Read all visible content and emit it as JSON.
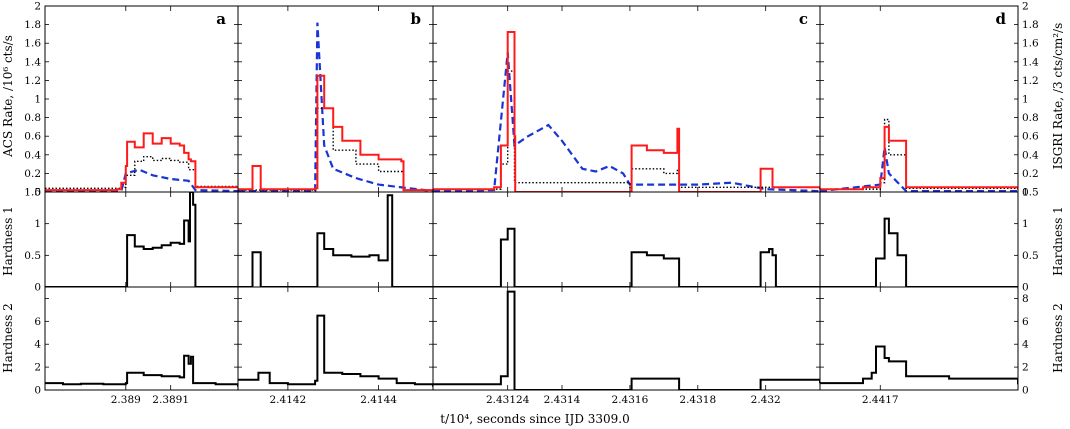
{
  "chart_data": {
    "type": "line",
    "x_axis_label": "t/10⁴, seconds since IJD 3309.0",
    "colors": {
      "acs_rate": "#ff1a1a",
      "isgri_rate": "#1a35d6",
      "component_dotted": "#000000",
      "hardness": "#000000",
      "frame": "#000000",
      "background": "#ffffff"
    },
    "rows": [
      {
        "id": "rate",
        "left_label": "ACS Rate, /10⁶ cts/s",
        "right_label": "ISGRI Rate, /3 cts/cm²/s",
        "ylim": [
          0,
          2
        ],
        "yticks": [
          "0",
          "0.2",
          "0.4",
          "0.6",
          "0.8",
          "1",
          "1.2",
          "1.4",
          "1.6",
          "1.8",
          "2"
        ]
      },
      {
        "id": "hardness1",
        "left_label": "Hardness 1",
        "right_label": "Hardness 1",
        "ylim": [
          0,
          1.5
        ],
        "yticks": [
          "0",
          "0.5",
          "1",
          "1.5"
        ]
      },
      {
        "id": "hardness2",
        "left_label": "Hardness 2",
        "right_label": "Hardness 2",
        "ylim": [
          0,
          9
        ],
        "yticks": [
          "0",
          "2",
          "4",
          "6",
          "8"
        ]
      }
    ],
    "panels": [
      {
        "id": "a",
        "letter": "a",
        "xlim": [
          2.38882,
          2.38925
        ],
        "xticks": [
          {
            "v": 2.389,
            "label": "2.389"
          },
          {
            "v": 2.3891,
            "label": "2.3891"
          }
        ],
        "rate": {
          "acs": [
            [
              2.38882,
              0.02
            ],
            [
              2.38898,
              0.03
            ],
            [
              2.38899,
              0.1
            ],
            [
              2.389,
              0.28
            ],
            [
              2.389003,
              0.54
            ],
            [
              2.38902,
              0.48
            ],
            [
              2.38904,
              0.63
            ],
            [
              2.38906,
              0.52
            ],
            [
              2.38908,
              0.58
            ],
            [
              2.3891,
              0.52
            ],
            [
              2.38912,
              0.5
            ],
            [
              2.38913,
              0.42
            ],
            [
              2.38914,
              0.35
            ],
            [
              2.389145,
              0.33
            ],
            [
              2.389155,
              0.05
            ],
            [
              2.38925,
              0.04
            ]
          ],
          "dotted": [
            [
              2.38882,
              0.04
            ],
            [
              2.38899,
              0.05
            ],
            [
              2.389,
              0.18
            ],
            [
              2.38902,
              0.33
            ],
            [
              2.38904,
              0.38
            ],
            [
              2.38906,
              0.34
            ],
            [
              2.38908,
              0.36
            ],
            [
              2.3891,
              0.34
            ],
            [
              2.38912,
              0.32
            ],
            [
              2.38914,
              0.24
            ],
            [
              2.389155,
              0.06
            ],
            [
              2.38925,
              0.05
            ]
          ],
          "isgri": [
            [
              2.38882,
              0.01
            ],
            [
              2.38899,
              0.01
            ],
            [
              2.389,
              0.2
            ],
            [
              2.38903,
              0.24
            ],
            [
              2.38906,
              0.18
            ],
            [
              2.3891,
              0.14
            ],
            [
              2.38914,
              0.12
            ],
            [
              2.389155,
              0.02
            ],
            [
              2.38925,
              0.01
            ]
          ]
        },
        "hardness1": [
          [
            2.38882,
            0
          ],
          [
            2.389,
            0
          ],
          [
            2.389003,
            0.82
          ],
          [
            2.38902,
            0.64
          ],
          [
            2.38904,
            0.6
          ],
          [
            2.38906,
            0.62
          ],
          [
            2.38908,
            0.66
          ],
          [
            2.3891,
            0.7
          ],
          [
            2.38912,
            0.68
          ],
          [
            2.38913,
            1.05
          ],
          [
            2.38914,
            0.72
          ],
          [
            2.389143,
            1.5
          ],
          [
            2.38915,
            1.3
          ],
          [
            2.389155,
            0
          ],
          [
            2.38925,
            0
          ]
        ],
        "hardness2": [
          [
            2.38882,
            0.6
          ],
          [
            2.38886,
            0.5
          ],
          [
            2.3889,
            0.55
          ],
          [
            2.38895,
            0.5
          ],
          [
            2.389,
            0.6
          ],
          [
            2.389003,
            1.5
          ],
          [
            2.38904,
            1.3
          ],
          [
            2.38908,
            1.2
          ],
          [
            2.38912,
            1.1
          ],
          [
            2.38913,
            3.0
          ],
          [
            2.38914,
            2.3
          ],
          [
            2.389145,
            2.9
          ],
          [
            2.38915,
            0.6
          ],
          [
            2.3892,
            0.5
          ],
          [
            2.38925,
            0.3
          ]
        ]
      },
      {
        "id": "b",
        "letter": "b",
        "xlim": [
          2.41409,
          2.41452
        ],
        "xticks": [
          {
            "v": 2.4142,
            "label": "2.4142"
          },
          {
            "v": 2.4144,
            "label": "2.4144"
          }
        ],
        "rate": {
          "acs": [
            [
              2.41409,
              0.03
            ],
            [
              2.41412,
              0.03
            ],
            [
              2.414122,
              0.28
            ],
            [
              2.41414,
              0.03
            ],
            [
              2.41426,
              0.04
            ],
            [
              2.414265,
              1.25
            ],
            [
              2.41428,
              0.9
            ],
            [
              2.4143,
              0.7
            ],
            [
              2.41432,
              0.55
            ],
            [
              2.41436,
              0.4
            ],
            [
              2.4144,
              0.35
            ],
            [
              2.41445,
              0.33
            ],
            [
              2.414455,
              0.02
            ],
            [
              2.41452,
              0.03
            ]
          ],
          "dotted": [
            [
              2.41409,
              0.02
            ],
            [
              2.41426,
              0.02
            ],
            [
              2.414265,
              0.9
            ],
            [
              2.4143,
              0.45
            ],
            [
              2.41435,
              0.3
            ],
            [
              2.4144,
              0.22
            ],
            [
              2.414455,
              0.02
            ],
            [
              2.41452,
              0.02
            ]
          ],
          "isgri": [
            [
              2.41409,
              0.01
            ],
            [
              2.41426,
              0.01
            ],
            [
              2.414265,
              1.82
            ],
            [
              2.41428,
              0.5
            ],
            [
              2.4143,
              0.25
            ],
            [
              2.41435,
              0.15
            ],
            [
              2.4144,
              0.08
            ],
            [
              2.41452,
              0.01
            ]
          ]
        },
        "hardness1": [
          [
            2.41409,
            0
          ],
          [
            2.41412,
            0
          ],
          [
            2.414122,
            0.55
          ],
          [
            2.41414,
            0
          ],
          [
            2.41426,
            0
          ],
          [
            2.414265,
            0.85
          ],
          [
            2.41428,
            0.6
          ],
          [
            2.4143,
            0.5
          ],
          [
            2.41434,
            0.48
          ],
          [
            2.41438,
            0.5
          ],
          [
            2.4144,
            0.42
          ],
          [
            2.41442,
            1.45
          ],
          [
            2.41443,
            0
          ],
          [
            2.41452,
            0
          ]
        ],
        "hardness2": [
          [
            2.41409,
            0.9
          ],
          [
            2.41413,
            0.9
          ],
          [
            2.414135,
            1.5
          ],
          [
            2.41416,
            0.6
          ],
          [
            2.4142,
            0.5
          ],
          [
            2.41426,
            0.8
          ],
          [
            2.414265,
            6.5
          ],
          [
            2.41428,
            1.5
          ],
          [
            2.41432,
            1.4
          ],
          [
            2.41436,
            1.2
          ],
          [
            2.4144,
            1.0
          ],
          [
            2.41444,
            0.6
          ],
          [
            2.41448,
            0.5
          ],
          [
            2.41452,
            0.3
          ]
        ]
      },
      {
        "id": "c",
        "letter": "c",
        "xlim": [
          2.43102,
          2.43216
        ],
        "xticks": [
          {
            "v": 2.43124,
            "label": "2.43124"
          },
          {
            "v": 2.4314,
            "label": "2.4314"
          },
          {
            "v": 2.4316,
            "label": "2.4316"
          },
          {
            "v": 2.4318,
            "label": "2.4318"
          },
          {
            "v": 2.432,
            "label": "2.432"
          }
        ],
        "rate": {
          "acs": [
            [
              2.43102,
              0.03
            ],
            [
              2.4312,
              0.05
            ],
            [
              2.43122,
              0.5
            ],
            [
              2.43124,
              1.72
            ],
            [
              2.43126,
              0.6
            ],
            [
              2.431262,
              0
            ],
            [
              2.4316,
              0
            ],
            [
              2.431605,
              0.5
            ],
            [
              2.43165,
              0.45
            ],
            [
              2.4317,
              0.42
            ],
            [
              2.43174,
              0.68
            ],
            [
              2.431745,
              0
            ],
            [
              2.43198,
              0
            ],
            [
              2.431985,
              0.25
            ],
            [
              2.43202,
              0.05
            ],
            [
              2.43216,
              0.03
            ]
          ],
          "dotted": [
            [
              2.43102,
              0.03
            ],
            [
              2.43122,
              0.3
            ],
            [
              2.43124,
              1.3
            ],
            [
              2.43126,
              0.1
            ],
            [
              2.4316,
              0.05
            ],
            [
              2.431605,
              0.25
            ],
            [
              2.4317,
              0.2
            ],
            [
              2.43174,
              0.25
            ],
            [
              2.431745,
              0.05
            ],
            [
              2.432,
              0.05
            ],
            [
              2.43216,
              0.03
            ]
          ],
          "isgri": [
            [
              2.43102,
              0.01
            ],
            [
              2.4312,
              0.02
            ],
            [
              2.43124,
              1.5
            ],
            [
              2.43126,
              0.5
            ],
            [
              2.4313,
              0.6
            ],
            [
              2.43136,
              0.72
            ],
            [
              2.4314,
              0.55
            ],
            [
              2.43146,
              0.25
            ],
            [
              2.4315,
              0.22
            ],
            [
              2.43154,
              0.28
            ],
            [
              2.43158,
              0.2
            ],
            [
              2.4316,
              0.08
            ],
            [
              2.4318,
              0.08
            ],
            [
              2.4319,
              0.1
            ],
            [
              2.432,
              0.03
            ],
            [
              2.43216,
              0.01
            ]
          ]
        },
        "hardness1": [
          [
            2.43102,
            0
          ],
          [
            2.4312,
            0
          ],
          [
            2.43122,
            0.75
          ],
          [
            2.43124,
            0.92
          ],
          [
            2.43126,
            0
          ],
          [
            2.4316,
            0
          ],
          [
            2.431605,
            0.55
          ],
          [
            2.43165,
            0.5
          ],
          [
            2.4317,
            0.45
          ],
          [
            2.431745,
            0
          ],
          [
            2.43198,
            0
          ],
          [
            2.431985,
            0.55
          ],
          [
            2.43201,
            0.6
          ],
          [
            2.43202,
            0.5
          ],
          [
            2.43203,
            0
          ],
          [
            2.43216,
            0
          ]
        ],
        "hardness2": [
          [
            2.43102,
            0.5
          ],
          [
            2.43115,
            0.5
          ],
          [
            2.43122,
            1.2
          ],
          [
            2.43124,
            8.6
          ],
          [
            2.43126,
            0
          ],
          [
            2.4316,
            0
          ],
          [
            2.431605,
            1.0
          ],
          [
            2.4317,
            1.0
          ],
          [
            2.431745,
            0
          ],
          [
            2.43198,
            0
          ],
          [
            2.431985,
            0.9
          ],
          [
            2.43216,
            0.6
          ]
        ]
      },
      {
        "id": "d",
        "letter": "d",
        "xlim": [
          2.44163,
          2.44186
        ],
        "xticks": [
          {
            "v": 2.4417,
            "label": "2.4417"
          }
        ],
        "rate": {
          "acs": [
            [
              2.44163,
              0.03
            ],
            [
              2.44168,
              0.05
            ],
            [
              2.4417,
              0.15
            ],
            [
              2.441705,
              0.7
            ],
            [
              2.44171,
              0.55
            ],
            [
              2.44173,
              0.05
            ],
            [
              2.44186,
              0.03
            ]
          ],
          "dotted": [
            [
              2.44163,
              0.03
            ],
            [
              2.4417,
              0.1
            ],
            [
              2.441705,
              0.78
            ],
            [
              2.44171,
              0.4
            ],
            [
              2.44173,
              0.04
            ],
            [
              2.44186,
              0.03
            ]
          ],
          "isgri": [
            [
              2.44163,
              0.01
            ],
            [
              2.4417,
              0.08
            ],
            [
              2.441705,
              0.48
            ],
            [
              2.44171,
              0.2
            ],
            [
              2.44173,
              0.01
            ],
            [
              2.44186,
              0.01
            ]
          ]
        },
        "hardness1": [
          [
            2.44163,
            0
          ],
          [
            2.44169,
            0
          ],
          [
            2.441695,
            0.45
          ],
          [
            2.441705,
            1.08
          ],
          [
            2.44171,
            0.85
          ],
          [
            2.44172,
            0.5
          ],
          [
            2.44173,
            0
          ],
          [
            2.44186,
            0
          ]
        ],
        "hardness2": [
          [
            2.44163,
            0.6
          ],
          [
            2.44168,
            1.0
          ],
          [
            2.44169,
            1.5
          ],
          [
            2.441695,
            3.8
          ],
          [
            2.441705,
            2.8
          ],
          [
            2.44171,
            2.5
          ],
          [
            2.44173,
            1.2
          ],
          [
            2.44178,
            1.0
          ],
          [
            2.44186,
            0.5
          ]
        ]
      }
    ]
  }
}
